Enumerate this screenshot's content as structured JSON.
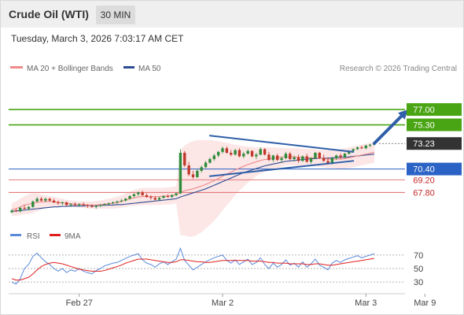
{
  "header": {
    "title": "Crude Oil (WTI)",
    "timeframe": "30 MIN"
  },
  "timestamp": "Tuesday, March 3, 2026 7:03:17 AM CET",
  "legend": {
    "ma20": "MA 20 + Bollinger Bands",
    "ma50": "MA 50",
    "rsi": "RSI",
    "ma9": "9MA",
    "credit": "Research © 2026 Trading Central"
  },
  "colors": {
    "green_level": "#4aa514",
    "blue_level": "#2b62c5",
    "red_level": "#e06a6a",
    "current_price": "#333333",
    "ma20": "#ef8a8a",
    "ma50": "#2c4d93",
    "bollinger_fill": "#fbe2e2",
    "rsi": "#5b8ad9",
    "rsi_ma": "#e02020",
    "bull_candle": "#2e8b3b",
    "bear_candle": "#c0392b",
    "arrow": "#2f5fa8"
  },
  "chart_data": {
    "type": "candlestick",
    "price_ylim": [
      65.3,
      80.5
    ],
    "x_labels": [
      {
        "label": "Feb 27",
        "index": 16
      },
      {
        "label": "Mar 2",
        "index": 50
      },
      {
        "label": "Mar 3",
        "index": 84
      },
      {
        "label": "Mar 9",
        "index": 98
      }
    ],
    "levels": [
      {
        "label": "77.00",
        "value": 77.0,
        "kind": "resistance"
      },
      {
        "label": "75.30",
        "value": 75.3,
        "kind": "resistance"
      },
      {
        "label": "73.23",
        "value": 73.23,
        "kind": "current"
      },
      {
        "label": "70.40",
        "value": 70.4,
        "kind": "pivot"
      },
      {
        "label": "69.20",
        "value": 69.2,
        "kind": "support"
      },
      {
        "label": "67.80",
        "value": 67.8,
        "kind": "support"
      }
    ],
    "candles": [
      [
        65.6,
        65.9,
        65.5,
        65.8
      ],
      [
        65.8,
        66.0,
        65.6,
        65.7
      ],
      [
        65.7,
        66.2,
        65.6,
        66.1
      ],
      [
        66.1,
        66.4,
        65.9,
        66.0
      ],
      [
        66.0,
        66.3,
        65.8,
        66.2
      ],
      [
        66.2,
        66.9,
        66.1,
        66.8
      ],
      [
        66.8,
        67.3,
        66.7,
        67.1
      ],
      [
        67.1,
        67.3,
        66.8,
        66.9
      ],
      [
        66.9,
        67.2,
        66.7,
        67.1
      ],
      [
        67.1,
        67.2,
        66.8,
        66.9
      ],
      [
        66.9,
        67.1,
        66.6,
        66.7
      ],
      [
        66.7,
        66.9,
        66.4,
        66.6
      ],
      [
        66.6,
        66.8,
        66.4,
        66.7
      ],
      [
        66.7,
        66.8,
        66.3,
        66.4
      ],
      [
        66.4,
        66.6,
        66.2,
        66.5
      ],
      [
        66.5,
        66.7,
        66.3,
        66.4
      ],
      [
        66.4,
        66.6,
        66.2,
        66.5
      ],
      [
        66.5,
        66.7,
        66.3,
        66.4
      ],
      [
        66.4,
        66.5,
        66.1,
        66.3
      ],
      [
        66.3,
        66.5,
        66.1,
        66.2
      ],
      [
        66.2,
        66.4,
        66.0,
        66.3
      ],
      [
        66.3,
        66.5,
        66.2,
        66.4
      ],
      [
        66.4,
        66.6,
        66.3,
        66.5
      ],
      [
        66.5,
        66.7,
        66.4,
        66.6
      ],
      [
        66.6,
        66.8,
        66.5,
        66.7
      ],
      [
        66.7,
        66.9,
        66.5,
        66.8
      ],
      [
        66.8,
        67.1,
        66.7,
        66.9
      ],
      [
        66.9,
        67.2,
        66.8,
        67.1
      ],
      [
        67.1,
        67.5,
        67.0,
        67.4
      ],
      [
        67.4,
        67.7,
        67.2,
        67.6
      ],
      [
        67.6,
        67.9,
        67.4,
        67.8
      ],
      [
        67.8,
        68.0,
        67.4,
        67.5
      ],
      [
        67.5,
        67.7,
        67.2,
        67.3
      ],
      [
        67.3,
        67.5,
        67.0,
        67.2
      ],
      [
        67.2,
        67.4,
        66.9,
        67.0
      ],
      [
        67.0,
        67.3,
        66.9,
        67.2
      ],
      [
        67.2,
        67.5,
        67.1,
        67.4
      ],
      [
        67.4,
        67.6,
        67.2,
        67.3
      ],
      [
        67.3,
        67.6,
        67.2,
        67.5
      ],
      [
        67.5,
        67.8,
        67.4,
        67.7
      ],
      [
        67.7,
        72.6,
        67.6,
        72.2
      ],
      [
        72.2,
        72.4,
        70.6,
        70.8
      ],
      [
        70.8,
        71.2,
        69.6,
        69.8
      ],
      [
        69.8,
        70.2,
        69.3,
        69.5
      ],
      [
        69.5,
        70.4,
        69.4,
        70.2
      ],
      [
        70.2,
        70.8,
        70.0,
        70.6
      ],
      [
        70.6,
        71.3,
        70.5,
        71.1
      ],
      [
        71.1,
        71.7,
        71.0,
        71.5
      ],
      [
        71.5,
        72.1,
        71.3,
        71.9
      ],
      [
        71.9,
        72.4,
        71.7,
        72.3
      ],
      [
        72.3,
        72.9,
        72.1,
        72.7
      ],
      [
        72.7,
        72.9,
        72.1,
        72.2
      ],
      [
        72.2,
        72.5,
        71.8,
        72.0
      ],
      [
        72.0,
        72.6,
        71.9,
        72.5
      ],
      [
        72.5,
        72.7,
        71.7,
        71.8
      ],
      [
        71.8,
        72.3,
        71.6,
        72.1
      ],
      [
        72.1,
        72.6,
        72.0,
        72.4
      ],
      [
        72.4,
        72.5,
        71.7,
        71.8
      ],
      [
        71.8,
        72.2,
        71.5,
        72.0
      ],
      [
        72.0,
        72.8,
        71.9,
        72.6
      ],
      [
        72.6,
        72.7,
        71.9,
        72.0
      ],
      [
        72.0,
        72.3,
        71.3,
        71.4
      ],
      [
        71.4,
        72.0,
        71.2,
        71.9
      ],
      [
        71.9,
        72.1,
        71.3,
        71.4
      ],
      [
        71.4,
        71.8,
        71.1,
        71.6
      ],
      [
        71.6,
        72.3,
        71.5,
        72.1
      ],
      [
        72.1,
        72.3,
        71.4,
        71.5
      ],
      [
        71.5,
        71.9,
        71.2,
        71.7
      ],
      [
        71.7,
        72.0,
        71.1,
        71.3
      ],
      [
        71.3,
        71.9,
        71.2,
        71.8
      ],
      [
        71.8,
        72.1,
        71.1,
        71.2
      ],
      [
        71.2,
        71.7,
        71.0,
        71.6
      ],
      [
        71.6,
        72.3,
        71.5,
        72.2
      ],
      [
        72.2,
        72.3,
        71.5,
        71.6
      ],
      [
        71.6,
        72.0,
        71.2,
        71.3
      ],
      [
        71.3,
        71.7,
        70.9,
        71.0
      ],
      [
        71.0,
        71.7,
        70.9,
        71.6
      ],
      [
        71.6,
        72.0,
        71.4,
        71.9
      ],
      [
        71.9,
        72.1,
        71.5,
        71.7
      ],
      [
        71.7,
        72.2,
        71.6,
        72.1
      ],
      [
        72.1,
        72.5,
        72.0,
        72.4
      ],
      [
        72.4,
        72.7,
        72.2,
        72.6
      ],
      [
        72.6,
        72.9,
        72.5,
        72.8
      ],
      [
        72.8,
        73.0,
        72.6,
        72.7
      ],
      [
        72.7,
        73.1,
        72.6,
        73.0
      ],
      [
        73.0,
        73.2,
        72.8,
        73.1
      ],
      [
        73.1,
        73.3,
        73.0,
        73.23
      ]
    ],
    "ma20": [
      65.9,
      66.0,
      66.2,
      66.4,
      66.5,
      66.6,
      66.7,
      66.75,
      66.8,
      66.8,
      66.75,
      66.7,
      66.65,
      66.6,
      66.55,
      66.5,
      66.5,
      66.45,
      66.4,
      66.4,
      66.4,
      66.45,
      66.5,
      66.55,
      66.6,
      66.7,
      66.8,
      66.95,
      67.1,
      67.2,
      67.3,
      67.35,
      67.35,
      67.35,
      67.35,
      67.35,
      67.4,
      67.4,
      67.45,
      67.55,
      67.8,
      68.0,
      68.1,
      68.2,
      68.35,
      68.5,
      68.7,
      68.9,
      69.1,
      69.35,
      69.6,
      69.85,
      70.05,
      70.3,
      70.5,
      70.7,
      70.9,
      71.05,
      71.2,
      71.35,
      71.45,
      71.5,
      71.6,
      71.65,
      71.7,
      71.75,
      71.75,
      71.75,
      71.7,
      71.7,
      71.65,
      71.65,
      71.65,
      71.6,
      71.55,
      71.5,
      71.5,
      71.5,
      71.5,
      71.55,
      71.65,
      71.75,
      71.85,
      71.95,
      72.05,
      72.15,
      72.25
    ],
    "ma50": [
      65.7,
      65.75,
      65.8,
      65.85,
      65.9,
      65.95,
      66.0,
      66.05,
      66.1,
      66.15,
      66.2,
      66.2,
      66.25,
      66.25,
      66.3,
      66.3,
      66.3,
      66.3,
      66.35,
      66.35,
      66.35,
      66.35,
      66.4,
      66.4,
      66.4,
      66.45,
      66.45,
      66.5,
      66.55,
      66.6,
      66.65,
      66.7,
      66.75,
      66.8,
      66.85,
      66.9,
      66.95,
      67.0,
      67.05,
      67.1,
      67.3,
      67.45,
      67.6,
      67.75,
      67.9,
      68.05,
      68.2,
      68.4,
      68.6,
      68.8,
      69.0,
      69.2,
      69.4,
      69.6,
      69.8,
      70.0,
      70.15,
      70.3,
      70.45,
      70.6,
      70.75,
      70.85,
      70.95,
      71.05,
      71.15,
      71.25,
      71.3,
      71.35,
      71.4,
      71.45,
      71.5,
      71.55,
      71.55,
      71.6,
      71.6,
      71.6,
      71.65,
      71.65,
      71.7,
      71.7,
      71.75,
      71.8,
      71.85,
      71.9,
      71.95,
      72.0,
      72.05
    ],
    "bollinger_upper": [
      66.6,
      66.8,
      67.1,
      67.4,
      67.6,
      67.7,
      67.7,
      67.6,
      67.5,
      67.4,
      67.3,
      67.2,
      67.1,
      67.0,
      66.9,
      66.85,
      66.8,
      66.8,
      66.8,
      66.8,
      66.85,
      66.9,
      67.0,
      67.1,
      67.2,
      67.35,
      67.5,
      67.7,
      67.9,
      68.1,
      68.2,
      68.3,
      68.3,
      68.3,
      68.3,
      68.3,
      68.3,
      68.35,
      68.4,
      68.5,
      72.5,
      73.0,
      73.3,
      73.5,
      73.6,
      73.6,
      73.6,
      73.6,
      73.55,
      73.5,
      73.4,
      73.3,
      73.2,
      73.1,
      73.0,
      72.95,
      72.9,
      72.85,
      72.8,
      72.8,
      72.8,
      72.8,
      72.8,
      72.75,
      72.75,
      72.7,
      72.7,
      72.7,
      72.7,
      72.65,
      72.6,
      72.6,
      72.6,
      72.55,
      72.5,
      72.5,
      72.5,
      72.55,
      72.6,
      72.7,
      72.8,
      72.9,
      73.0,
      73.1,
      73.2,
      73.3,
      73.4
    ],
    "bollinger_lower": [
      65.2,
      65.2,
      65.3,
      65.4,
      65.4,
      65.5,
      65.7,
      65.9,
      66.1,
      66.2,
      66.2,
      66.2,
      66.2,
      66.2,
      66.2,
      66.15,
      66.15,
      66.1,
      66.0,
      66.0,
      65.95,
      66.0,
      66.0,
      66.0,
      66.0,
      66.05,
      66.1,
      66.2,
      66.3,
      66.3,
      66.4,
      66.4,
      66.4,
      66.4,
      66.4,
      66.4,
      66.5,
      66.45,
      66.5,
      66.6,
      63.1,
      63.0,
      62.9,
      62.9,
      63.1,
      63.4,
      63.8,
      64.2,
      64.65,
      65.2,
      65.8,
      66.4,
      66.9,
      67.5,
      68.0,
      68.45,
      68.9,
      69.25,
      69.6,
      69.9,
      70.1,
      70.2,
      70.4,
      70.55,
      70.65,
      70.8,
      70.8,
      70.8,
      70.7,
      70.75,
      70.7,
      70.7,
      70.7,
      70.65,
      70.6,
      70.5,
      70.5,
      70.45,
      70.4,
      70.4,
      70.5,
      70.6,
      70.7,
      70.8,
      70.9,
      71.0,
      71.1
    ],
    "trendlines": [
      {
        "from": [
          47,
          74.1
        ],
        "to": [
          81,
          72.3
        ]
      },
      {
        "from": [
          47,
          69.6
        ],
        "to": [
          81,
          71.3
        ]
      }
    ],
    "arrow": {
      "from": [
        86,
        73.25
      ],
      "to": [
        94,
        77.0
      ]
    },
    "rsi": {
      "ylim": [
        15,
        85
      ],
      "ticks": [
        70,
        50,
        30
      ],
      "values": [
        30,
        27,
        35,
        50,
        56,
        68,
        73,
        66,
        60,
        56,
        50,
        46,
        50,
        44,
        48,
        46,
        50,
        46,
        44,
        42,
        47,
        50,
        54,
        56,
        58,
        59,
        62,
        65,
        68,
        70,
        72,
        63,
        58,
        56,
        52,
        57,
        60,
        56,
        60,
        64,
        80,
        62,
        55,
        48,
        52,
        56,
        60,
        63,
        66,
        68,
        70,
        62,
        58,
        63,
        56,
        60,
        64,
        56,
        59,
        66,
        56,
        50,
        58,
        52,
        56,
        63,
        55,
        58,
        52,
        60,
        52,
        57,
        64,
        55,
        52,
        48,
        58,
        62,
        59,
        63,
        65,
        67,
        69,
        66,
        68,
        70,
        72
      ],
      "ma9": [
        35,
        33,
        33,
        35,
        37,
        42,
        48,
        53,
        56,
        58,
        59,
        58,
        57,
        55,
        53,
        51,
        49,
        48,
        47,
        46,
        46,
        46,
        47,
        49,
        51,
        53,
        55,
        58,
        60,
        62,
        64,
        64,
        64,
        63,
        62,
        61,
        60,
        59,
        59,
        60,
        63,
        63,
        62,
        61,
        60,
        60,
        59,
        59,
        60,
        61,
        62,
        62,
        62,
        62,
        62,
        62,
        62,
        61,
        61,
        61,
        60,
        59,
        59,
        58,
        58,
        58,
        57,
        57,
        57,
        57,
        56,
        56,
        57,
        57,
        56,
        55,
        55,
        56,
        57,
        58,
        59,
        60,
        61,
        62,
        63,
        64,
        65
      ]
    }
  }
}
